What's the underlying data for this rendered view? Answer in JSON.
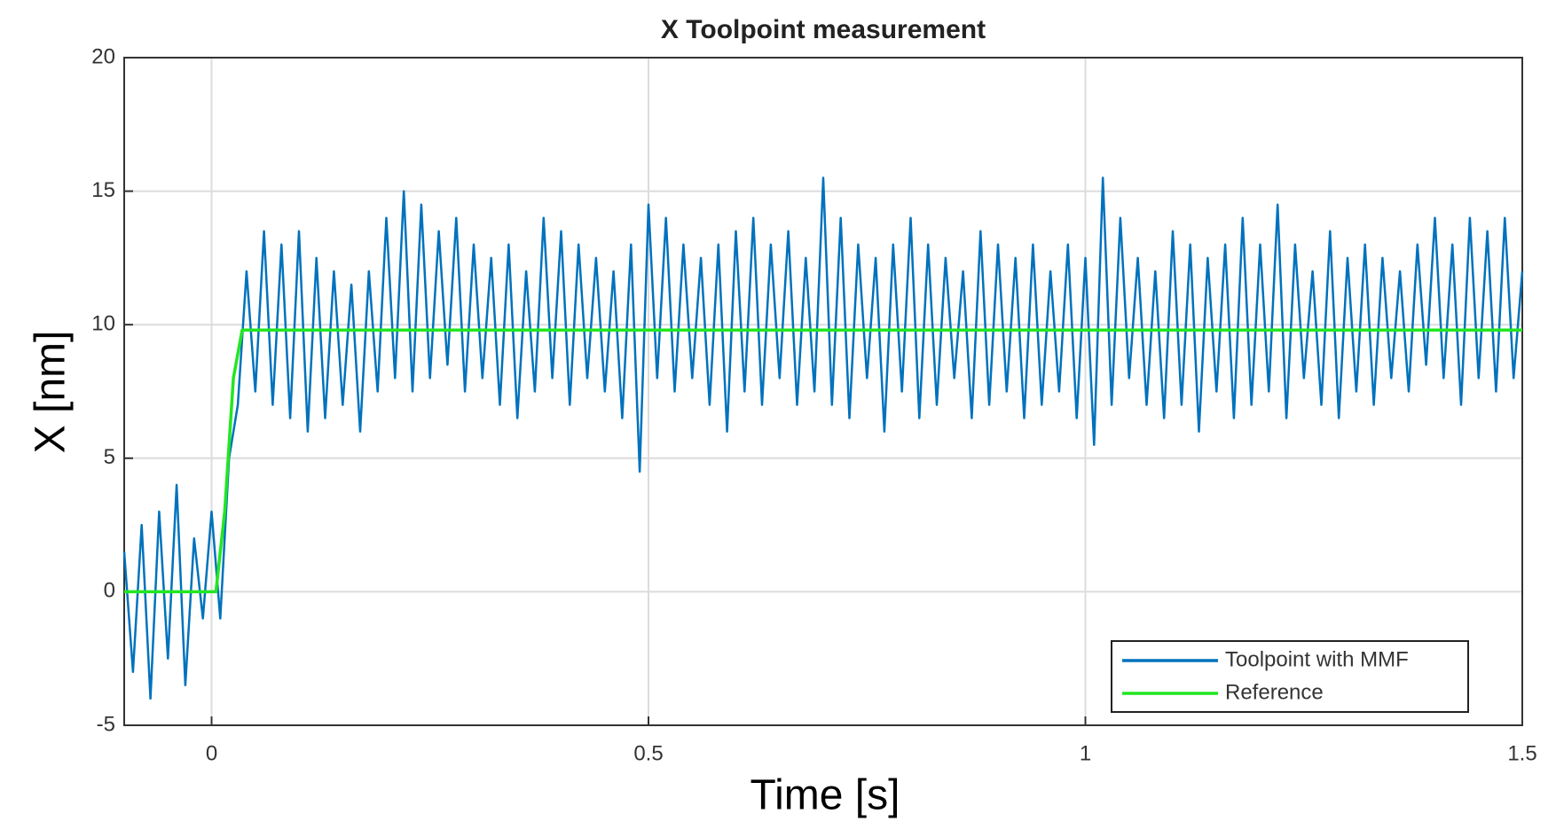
{
  "chart_data": {
    "type": "line",
    "title": "X Toolpoint measurement",
    "xlabel": "Time [s]",
    "ylabel": "X [nm]",
    "xlim": [
      -0.1,
      1.5
    ],
    "xticks": [
      0,
      0.5,
      1,
      1.5
    ],
    "ylim": [
      -5,
      20
    ],
    "yticks": [
      -5,
      0,
      5,
      10,
      15,
      20
    ],
    "grid": true,
    "legend": "lower right",
    "series": [
      {
        "name": "Toolpoint with MMF",
        "color": "#0072bd",
        "x": [
          -0.1,
          -0.09,
          -0.08,
          -0.07,
          -0.06,
          -0.05,
          -0.04,
          -0.03,
          -0.02,
          -0.01,
          0,
          0.01,
          0.02,
          0.03,
          0.04,
          0.05,
          0.06,
          0.07,
          0.08,
          0.09,
          0.1,
          0.11,
          0.12,
          0.13,
          0.14,
          0.15,
          0.16,
          0.17,
          0.18,
          0.19,
          0.2,
          0.21,
          0.22,
          0.23,
          0.24,
          0.25,
          0.26,
          0.27,
          0.28,
          0.29,
          0.3,
          0.31,
          0.32,
          0.33,
          0.34,
          0.35,
          0.36,
          0.37,
          0.38,
          0.39,
          0.4,
          0.41,
          0.42,
          0.43,
          0.44,
          0.45,
          0.46,
          0.47,
          0.48,
          0.49,
          0.5,
          0.51,
          0.52,
          0.53,
          0.54,
          0.55,
          0.56,
          0.57,
          0.58,
          0.59,
          0.6,
          0.61,
          0.62,
          0.63,
          0.64,
          0.65,
          0.66,
          0.67,
          0.68,
          0.69,
          0.7,
          0.71,
          0.72,
          0.73,
          0.74,
          0.75,
          0.76,
          0.77,
          0.78,
          0.79,
          0.8,
          0.81,
          0.82,
          0.83,
          0.84,
          0.85,
          0.86,
          0.87,
          0.88,
          0.89,
          0.9,
          0.91,
          0.92,
          0.93,
          0.94,
          0.95,
          0.96,
          0.97,
          0.98,
          0.99,
          1,
          1.01,
          1.02,
          1.03,
          1.04,
          1.05,
          1.06,
          1.07,
          1.08,
          1.09,
          1.1,
          1.11,
          1.12,
          1.13,
          1.14,
          1.15,
          1.16,
          1.17,
          1.18,
          1.19,
          1.2,
          1.21,
          1.22,
          1.23,
          1.24,
          1.25,
          1.26,
          1.27,
          1.28,
          1.29,
          1.3,
          1.31,
          1.32,
          1.33,
          1.34,
          1.35,
          1.36,
          1.37,
          1.38,
          1.39,
          1.4,
          1.41,
          1.42,
          1.43,
          1.44,
          1.45,
          1.46,
          1.47,
          1.48,
          1.49,
          1.5
        ],
        "values": [
          1.5,
          -3,
          2.5,
          -4,
          3,
          -2.5,
          4,
          -3.5,
          2,
          -1,
          3,
          -1,
          5,
          7,
          12,
          7.5,
          13.5,
          7,
          13,
          6.5,
          13.5,
          6,
          12.5,
          6.5,
          12,
          7,
          11.5,
          6,
          12,
          7.5,
          14,
          8,
          15,
          7.5,
          14.5,
          8,
          13.5,
          8.5,
          14,
          7.5,
          13,
          8,
          12.5,
          7,
          13,
          6.5,
          12,
          7.5,
          14,
          8,
          13.5,
          7,
          13,
          8,
          12.5,
          7.5,
          12,
          6.5,
          13,
          4.5,
          14.5,
          8,
          14,
          7.5,
          13,
          8,
          12.5,
          7,
          13,
          6,
          13.5,
          7.5,
          14,
          7,
          13,
          8,
          13.5,
          7,
          12.5,
          7.5,
          15.5,
          7,
          14,
          6.5,
          13,
          8,
          12.5,
          6,
          13,
          7.5,
          14,
          6.5,
          13,
          7,
          12.5,
          8,
          12,
          6.5,
          13.5,
          7,
          13,
          7.5,
          12.5,
          6.5,
          13,
          7,
          12,
          7.5,
          13,
          6.5,
          12.5,
          5.5,
          15.5,
          7,
          14,
          8,
          12.5,
          7,
          12,
          6.5,
          13.5,
          7,
          13,
          6,
          12.5,
          7.5,
          13,
          6.5,
          14,
          7,
          13,
          7.5,
          14.5,
          6.5,
          13,
          8,
          12,
          7,
          13.5,
          6.5,
          12.5,
          7.5,
          13,
          7,
          12.5,
          8,
          12,
          7.5,
          13,
          8.5,
          14,
          8,
          13,
          7,
          14,
          8,
          13.5,
          7.5,
          14,
          8,
          12
        ]
      },
      {
        "name": "Reference",
        "color": "#22e622",
        "x": [
          -0.1,
          0.005,
          0.015,
          0.025,
          0.035,
          1.5
        ],
        "values": [
          0,
          0,
          3,
          8,
          9.8,
          9.8
        ]
      }
    ]
  }
}
